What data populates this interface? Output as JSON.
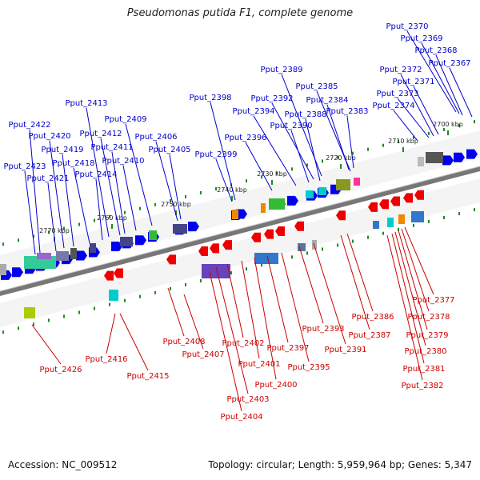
{
  "title": "Pseudomonas putida F1, complete genome",
  "footer": {
    "accession": "Accession: NC_009512",
    "summary": "Topology: circular; Length: 5,959,964 bp; Genes: 5,347"
  },
  "colors": {
    "forward_label": "#0000cc",
    "reverse_label": "#cc0000",
    "forward_arrow": "#0000ee",
    "reverse_arrow": "#ee0000",
    "backbone": "#888888",
    "tick": "#228822"
  },
  "scale_ticks": [
    "2700 kbp",
    "2710 kbp",
    "2720 kbp",
    "2730 kbp",
    "2740 kbp",
    "2750 kbp",
    "2760 kbp",
    "2770 kbp"
  ],
  "forward_genes": [
    "Pput_2367",
    "Pput_2368",
    "Pput_2369",
    "Pput_2370",
    "Pput_2371",
    "Pput_2372",
    "Pput_2373",
    "Pput_2374",
    "Pput_2383",
    "Pput_2384",
    "Pput_2385",
    "Pput_2388",
    "Pput_2389",
    "Pput_2390",
    "Pput_2392",
    "Pput_2394",
    "Pput_2396",
    "Pput_2398",
    "Pput_2399",
    "Pput_2405",
    "Pput_2406",
    "Pput_2409",
    "Pput_2410",
    "Pput_2411",
    "Pput_2412",
    "Pput_2413",
    "Pput_2414",
    "Pput_2418",
    "Pput_2419",
    "Pput_2420",
    "Pput_2421",
    "Pput_2422",
    "Pput_2423"
  ],
  "reverse_genes": [
    "Pput_2377",
    "Pput_2378",
    "Pput_2379",
    "Pput_2380",
    "Pput_2381",
    "Pput_2382",
    "Pput_2386",
    "Pput_2387",
    "Pput_2391",
    "Pput_2393",
    "Pput_2395",
    "Pput_2397",
    "Pput_2400",
    "Pput_2401",
    "Pput_2402",
    "Pput_2403",
    "Pput_2404",
    "Pput_2407",
    "Pput_2408",
    "Pput_2415",
    "Pput_2416",
    "Pput_2426"
  ]
}
